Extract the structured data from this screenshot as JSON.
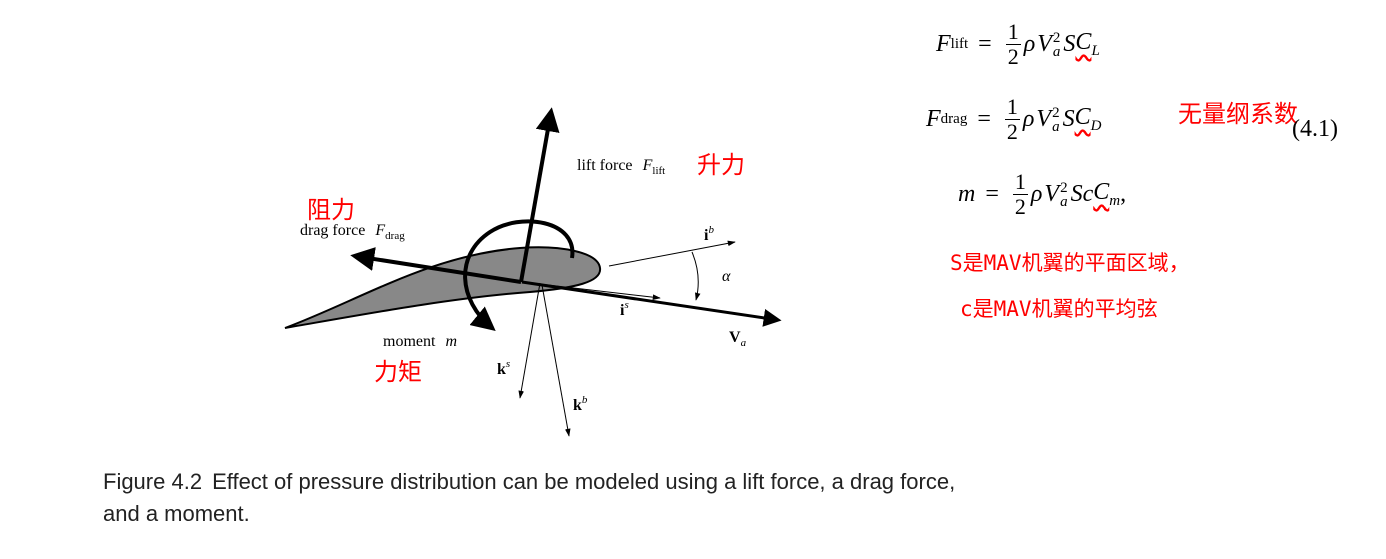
{
  "labels": {
    "lift_force": "lift force",
    "lift_force_symbol": "F",
    "lift_force_sub": "lift",
    "drag_force": "drag force",
    "drag_force_symbol": "F",
    "drag_force_sub": "drag",
    "moment": "moment",
    "moment_symbol": "m",
    "i_b": "i",
    "i_b_sup": "b",
    "i_s": "i",
    "i_s_sup": "s",
    "k_s": "k",
    "k_s_sup": "s",
    "k_b": "k",
    "k_b_sup": "b",
    "V_a": "V",
    "V_a_sub": "a",
    "alpha": "α"
  },
  "annotations": {
    "lift_cn": "升力",
    "drag_cn": "阻力",
    "moment_cn": "力矩",
    "dimensionless_cn": "无量纲系数",
    "S_note": "S是MAV机翼的平面区域，",
    "c_note": "c是MAV机翼的平均弦"
  },
  "equations": {
    "lift": {
      "lhs": "F",
      "lhs_sub": "lift",
      "eq": "=",
      "num": "1",
      "den": "2",
      "rho": "ρ",
      "V": "V",
      "V_sup": "2",
      "V_sub": "a",
      "S": "S",
      "coef": "C",
      "coef_sub": "L"
    },
    "drag": {
      "lhs": "F",
      "lhs_sub": "drag",
      "eq": "=",
      "num": "1",
      "den": "2",
      "rho": "ρ",
      "V": "V",
      "V_sup": "2",
      "V_sub": "a",
      "S": "S",
      "coef": "C",
      "coef_sub": "D"
    },
    "moment": {
      "lhs": "m",
      "eq": "=",
      "num": "1",
      "den": "2",
      "rho": "ρ",
      "V": "V",
      "V_sup": "2",
      "V_sub": "a",
      "S": "S",
      "c": "c",
      "coef": "C",
      "coef_sub": "m",
      "tail": ","
    },
    "number": "(4.1)"
  },
  "caption": {
    "label": "Figure 4.2",
    "text": "Effect of pressure distribution can be modeled using a lift force, a drag force, and a moment."
  }
}
